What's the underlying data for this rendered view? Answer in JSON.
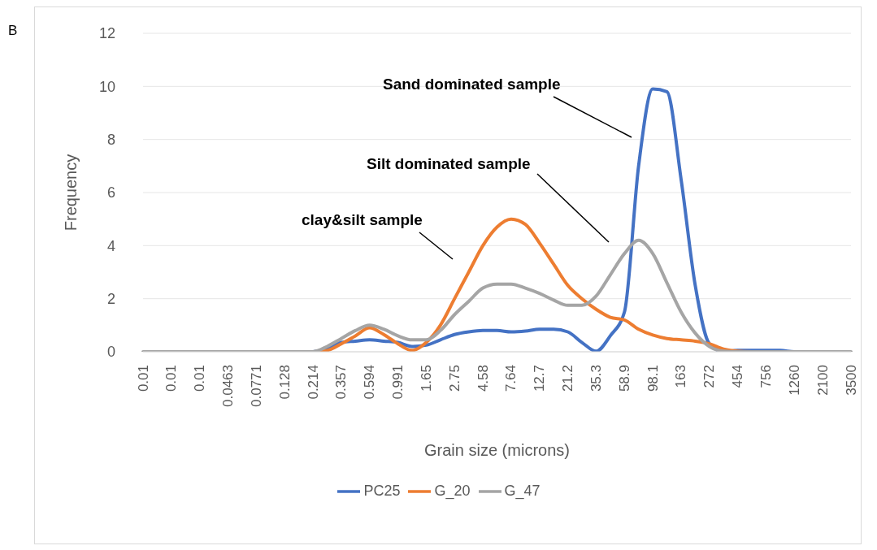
{
  "chart_data": {
    "type": "line",
    "xlabel": "Grain size (microns)",
    "ylabel": "Frequency",
    "categories": [
      "0.01",
      null,
      "0.01",
      null,
      "0.01",
      null,
      "0.0463",
      null,
      "0.0771",
      null,
      "0.128",
      null,
      "0.214",
      null,
      "0.357",
      null,
      "0.594",
      null,
      "0.991",
      null,
      "1.65",
      null,
      "2.75",
      null,
      "4.58",
      null,
      "7.64",
      null,
      "12.7",
      null,
      "21.2",
      null,
      "35.3",
      null,
      "58.9",
      null,
      "98.1",
      null,
      "163",
      null,
      "272",
      null,
      "454",
      null,
      "756",
      null,
      "1260",
      null,
      "2100",
      null,
      "3500"
    ],
    "series": [
      {
        "name": "PC25",
        "color": "#4472c4",
        "values": [
          null,
          null,
          null,
          null,
          null,
          null,
          null,
          null,
          null,
          null,
          null,
          null,
          0,
          0.1,
          0.35,
          0.4,
          0.45,
          0.4,
          0.35,
          0.2,
          0.25,
          0.45,
          0.65,
          0.75,
          0.8,
          0.8,
          0.75,
          0.78,
          0.85,
          0.85,
          0.75,
          0.35,
          0.02,
          0.6,
          1.5,
          7.0,
          9.9,
          9.8,
          6.5,
          2.5,
          0.3,
          0,
          0.05,
          0.05,
          0.05,
          0.05,
          0,
          0,
          null,
          null,
          null
        ]
      },
      {
        "name": "G_20",
        "color": "#ed7d31",
        "values": [
          null,
          null,
          null,
          null,
          null,
          null,
          null,
          null,
          null,
          null,
          null,
          0,
          0,
          0.05,
          0.3,
          0.6,
          0.9,
          0.65,
          0.3,
          0.05,
          0.35,
          1.0,
          2.0,
          3.0,
          4.0,
          4.7,
          5.0,
          4.8,
          4.1,
          3.3,
          2.5,
          2.0,
          1.6,
          1.3,
          1.2,
          0.85,
          0.63,
          0.5,
          0.45,
          0.4,
          0.3,
          0.1,
          0.02,
          0,
          null,
          null,
          null,
          null,
          null,
          null,
          null
        ]
      },
      {
        "name": "G_47",
        "color": "#a5a5a5",
        "values": [
          0,
          0,
          0,
          0,
          0,
          0,
          0,
          0,
          0,
          0,
          0,
          0,
          0,
          0.2,
          0.5,
          0.8,
          1.0,
          0.85,
          0.6,
          0.45,
          0.45,
          0.8,
          1.4,
          1.9,
          2.4,
          2.55,
          2.55,
          2.4,
          2.2,
          1.95,
          1.75,
          1.75,
          2.1,
          2.9,
          3.7,
          4.2,
          3.7,
          2.6,
          1.5,
          0.7,
          0.2,
          0.02,
          0,
          0,
          0,
          0,
          0,
          0,
          0,
          0,
          0
        ]
      }
    ],
    "ylim": [
      0,
      12
    ],
    "yticks": [
      0,
      2,
      4,
      6,
      8,
      10,
      12
    ],
    "grid": "y",
    "legend": "bottom",
    "marker": "none",
    "line_style": "solid",
    "annotations": [
      "B",
      "Sand dominated sample",
      "Silt dominated sample",
      "clay&silt sample"
    ]
  }
}
